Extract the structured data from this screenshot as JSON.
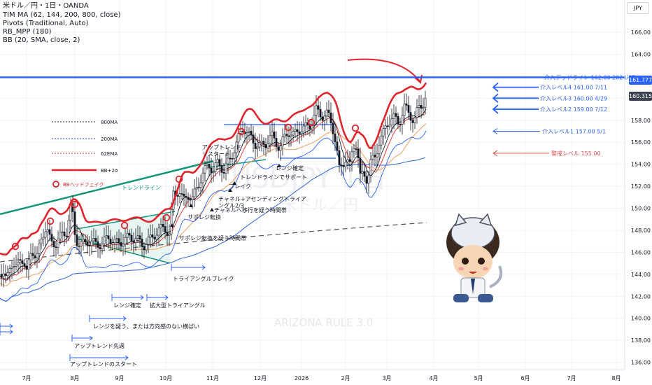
{
  "legend": {
    "symbol": "米ドル／円・1日・OANDA",
    "indicators": [
      "TIM MA (62, 144, 200, 800, close)",
      "Pivots (Traditional, Auto)",
      "RB_MPP (180)",
      "BB (20, SMA, close, 2)"
    ]
  },
  "currency_button": "JPY",
  "watermark": {
    "symbol": "USDJPY 1日",
    "name": "米ドル／円",
    "brand": "ARIZONA RULE 3.0"
  },
  "price_boxes": {
    "resistance": "161.777",
    "last": "160.315"
  },
  "key_legend": [
    {
      "label": "800MA",
      "color": "#555555",
      "style": "dotted"
    },
    {
      "label": "200MA",
      "color": "#3a6fd8",
      "style": "dotted"
    },
    {
      "label": "62EMA",
      "color": "#e8504a",
      "style": "dotted"
    },
    {
      "label": "BB+2σ",
      "color": "#e0242b",
      "style": "solid"
    },
    {
      "label": "BBヘッドフェイク",
      "color": "#e0242b",
      "style": "circle"
    }
  ],
  "labels": {
    "deadline": "介入デッドライン 162.00 2024/07",
    "lvl4": "介入レベル4 161.00 7/11",
    "lvl3": "介入レベル3 160.00 4/29",
    "lvl2": "介入レベル2 159.00 7/12",
    "lvl1": "介入レベル1 157.00 5/1",
    "warning": "警戒レベル 155.00",
    "trendline": "トレンドライン",
    "uptrend_restart": "アップトレンド\nリスタート",
    "break": "ブレイク",
    "range_confirm_a": "レンジ確定",
    "trendline_support": "トレンドラインでサポート",
    "channel_ascending": "チャネル+アセンディングトライア\nングル2/3",
    "channel_move": "チャネルへ移行を疑う時間帯",
    "support_resist": "サポレジ転換",
    "support_resist_doubt": "サポレジ転換を疑う時間帯",
    "triangle_break": "トライアングルブレイク",
    "range_confirm_b": "レンジ確定",
    "expand_triangle": "拡大型トライアングル",
    "range_doubt": "レンジを疑う、または方向感のない横ばい",
    "uptrend_first": "アップトレンド先週",
    "uptrend_start": "アップトレンドのスタート"
  },
  "chart_data": {
    "type": "candlestick",
    "instrument": "USDJPY",
    "timeframe": "1D",
    "y_ticks": [
      136,
      138,
      140,
      142,
      144,
      146,
      148,
      150,
      152,
      154,
      156,
      158,
      160,
      162,
      164,
      166
    ],
    "ylim": [
      135.2,
      167.2
    ],
    "x_ticks": [
      "7月",
      "8月",
      "9月",
      "10月",
      "11月",
      "12月",
      "2026",
      "2月",
      "3月",
      "4月",
      "5月",
      "6月",
      "7月",
      "8月"
    ],
    "horizontal_levels": [
      {
        "name": "介入デッドライン",
        "value": 162.0,
        "color": "#2962ff"
      },
      {
        "name": "介入レベル4",
        "value": 161.0,
        "color": "#2962ff"
      },
      {
        "name": "介入レベル3",
        "value": 160.0,
        "color": "#2962ff"
      },
      {
        "name": "介入レベル2",
        "value": 159.0,
        "color": "#2962ff"
      },
      {
        "name": "介入レベル1",
        "value": 157.0,
        "color": "#2962ff"
      },
      {
        "name": "警戒レベル",
        "value": 155.0,
        "color": "#e8504a"
      }
    ],
    "last_price": 160.315,
    "resistance_price": 161.777,
    "close_path": [
      [
        0,
        144.0
      ],
      [
        8,
        143.5
      ],
      [
        15,
        145.2
      ],
      [
        22,
        144.2
      ],
      [
        30,
        145.8
      ],
      [
        38,
        144.0
      ],
      [
        45,
        146.5
      ],
      [
        52,
        145.2
      ],
      [
        60,
        147.6
      ],
      [
        66,
        148.2
      ],
      [
        72,
        147.0
      ],
      [
        80,
        146.8
      ],
      [
        88,
        147.6
      ],
      [
        95,
        147.9
      ],
      [
        102,
        150.4
      ],
      [
        108,
        147.2
      ],
      [
        115,
        146.6
      ],
      [
        125,
        147.0
      ],
      [
        135,
        146.8
      ],
      [
        145,
        146.7
      ],
      [
        155,
        147.4
      ],
      [
        165,
        146.8
      ],
      [
        175,
        147.0
      ],
      [
        185,
        147.4
      ],
      [
        195,
        147.2
      ],
      [
        205,
        146.6
      ],
      [
        215,
        147.2
      ],
      [
        225,
        147.9
      ],
      [
        235,
        148.3
      ],
      [
        242,
        147.6
      ],
      [
        248,
        151.3
      ],
      [
        256,
        151.6
      ],
      [
        262,
        150.6
      ],
      [
        268,
        151.3
      ],
      [
        275,
        150.8
      ],
      [
        282,
        152.0
      ],
      [
        290,
        153.1
      ],
      [
        298,
        154.0
      ],
      [
        305,
        153.4
      ],
      [
        312,
        154.2
      ],
      [
        320,
        153.4
      ],
      [
        330,
        154.6
      ],
      [
        340,
        156.2
      ],
      [
        348,
        157.4
      ],
      [
        356,
        156.6
      ],
      [
        364,
        155.9
      ],
      [
        372,
        155.6
      ],
      [
        380,
        155.9
      ],
      [
        388,
        156.6
      ],
      [
        395,
        155.9
      ],
      [
        400,
        155.5
      ],
      [
        405,
        156.2
      ],
      [
        412,
        157.0
      ],
      [
        420,
        156.6
      ],
      [
        428,
        157.2
      ],
      [
        436,
        157.3
      ],
      [
        444,
        157.6
      ],
      [
        452,
        158.9
      ],
      [
        460,
        158.4
      ],
      [
        468,
        158.6
      ],
      [
        475,
        157.5
      ],
      [
        480,
        156.0
      ],
      [
        485,
        153.5
      ],
      [
        490,
        154.0
      ],
      [
        495,
        154.7
      ],
      [
        500,
        153.8
      ],
      [
        505,
        155.6
      ],
      [
        510,
        155.9
      ],
      [
        515,
        152.8
      ],
      [
        520,
        153.1
      ],
      [
        525,
        152.6
      ],
      [
        530,
        154.2
      ],
      [
        536,
        154.6
      ],
      [
        542,
        156.1
      ],
      [
        548,
        156.8
      ],
      [
        555,
        157.9
      ],
      [
        562,
        158.3
      ],
      [
        570,
        157.7
      ],
      [
        578,
        159.2
      ],
      [
        585,
        158.6
      ],
      [
        592,
        157.9
      ],
      [
        598,
        159.1
      ],
      [
        605,
        159.6
      ],
      [
        610,
        160.3
      ]
    ]
  }
}
